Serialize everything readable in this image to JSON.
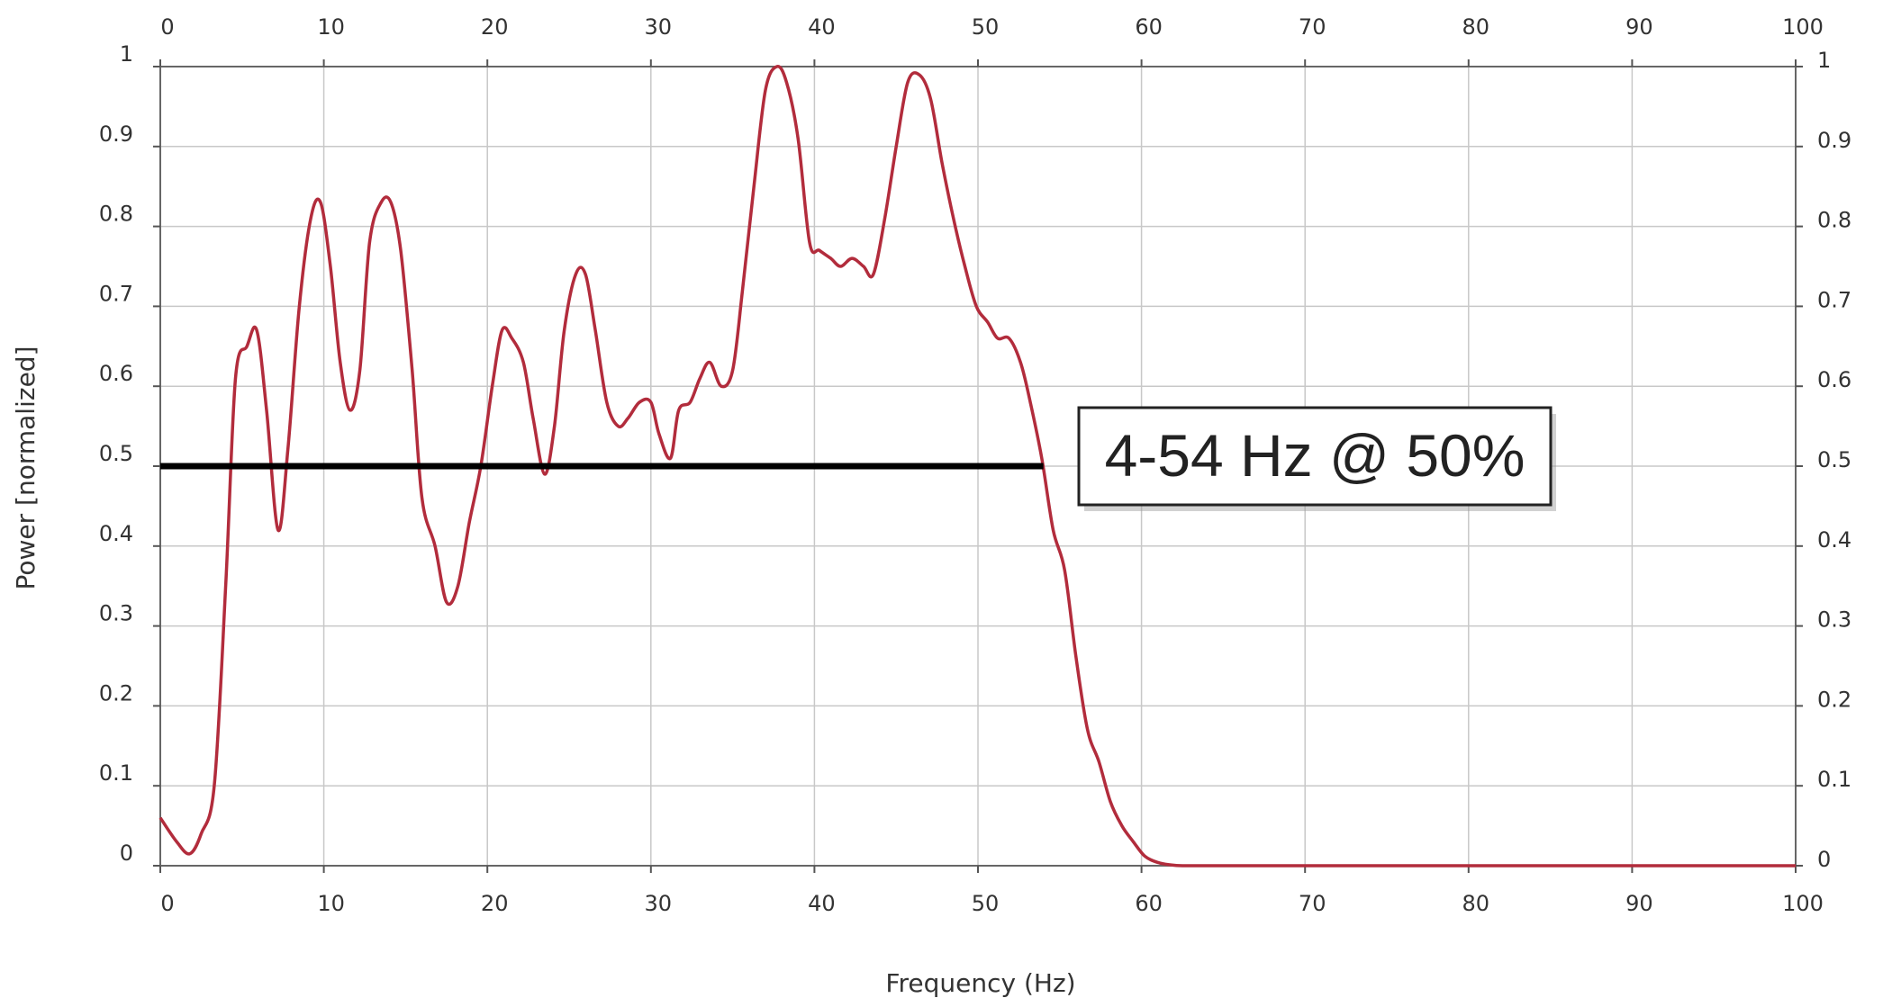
{
  "chart_data": {
    "type": "line",
    "xlabel": "Frequency (Hz)",
    "ylabel": "Power [normalized]",
    "xlim": [
      0,
      100
    ],
    "ylim": [
      0,
      1
    ],
    "x_ticks": [
      "0",
      "10",
      "20",
      "30",
      "40",
      "50",
      "60",
      "70",
      "80",
      "90",
      "100"
    ],
    "y_ticks": [
      "0",
      "0.1",
      "0.2",
      "0.3",
      "0.4",
      "0.5",
      "0.6",
      "0.7",
      "0.8",
      "0.9",
      "1"
    ],
    "grid": true,
    "line_color": "#b22c3c",
    "series": [
      {
        "x": [
          0,
          1,
          1.8,
          2.5,
          3.3,
          4.0,
          4.6,
          5.3,
          5.9,
          6.5,
          7.2,
          7.8,
          8.5,
          9.2,
          9.8,
          10.4,
          11.0,
          11.6,
          12.2,
          12.8,
          13.5,
          14.1,
          14.7,
          15.4,
          16.0,
          16.8,
          17.5,
          18.2,
          18.9,
          19.6,
          20.3,
          20.9,
          21.5,
          22.2,
          22.8,
          23.5,
          24.1,
          24.7,
          25.4,
          26.0,
          26.6,
          27.3,
          28.0,
          28.6,
          29.3,
          30.0,
          30.5,
          31.2,
          31.7,
          32.4,
          33.0,
          33.6,
          34.3,
          35.0,
          35.6,
          36.3,
          37.0,
          37.7,
          38.3,
          39.0,
          39.7,
          40.3,
          41.0,
          41.6,
          42.3,
          43.0,
          43.6,
          44.3,
          45.0,
          45.7,
          46.4,
          47.1,
          47.8,
          48.5,
          49.2,
          49.9,
          50.6,
          51.2,
          51.9,
          52.6,
          53.2,
          53.9,
          54.6,
          55.3,
          56.0,
          56.7,
          57.4,
          58.1,
          58.8,
          59.5,
          60.2,
          61.0,
          61.8,
          62.5,
          63.5,
          65.0,
          70,
          80,
          90,
          100
        ],
        "y": [
          0.06,
          0.03,
          0.015,
          0.04,
          0.1,
          0.35,
          0.61,
          0.65,
          0.67,
          0.57,
          0.42,
          0.52,
          0.7,
          0.81,
          0.83,
          0.75,
          0.63,
          0.57,
          0.62,
          0.78,
          0.83,
          0.83,
          0.77,
          0.62,
          0.46,
          0.4,
          0.33,
          0.35,
          0.43,
          0.5,
          0.6,
          0.67,
          0.66,
          0.63,
          0.56,
          0.49,
          0.55,
          0.67,
          0.74,
          0.74,
          0.67,
          0.58,
          0.55,
          0.56,
          0.58,
          0.58,
          0.54,
          0.51,
          0.57,
          0.58,
          0.61,
          0.63,
          0.6,
          0.62,
          0.72,
          0.85,
          0.97,
          1.0,
          0.98,
          0.91,
          0.78,
          0.77,
          0.76,
          0.75,
          0.76,
          0.75,
          0.74,
          0.81,
          0.9,
          0.98,
          0.99,
          0.96,
          0.88,
          0.81,
          0.75,
          0.7,
          0.68,
          0.66,
          0.66,
          0.63,
          0.58,
          0.51,
          0.42,
          0.37,
          0.26,
          0.17,
          0.13,
          0.08,
          0.05,
          0.03,
          0.012,
          0.004,
          0.001,
          0,
          0,
          0,
          0,
          0,
          0,
          0
        ]
      }
    ],
    "reference_line": {
      "y": 0.5,
      "x_start": 0,
      "x_end": 54,
      "color": "#000000"
    },
    "annotation": "4-54 Hz @ 50%"
  }
}
